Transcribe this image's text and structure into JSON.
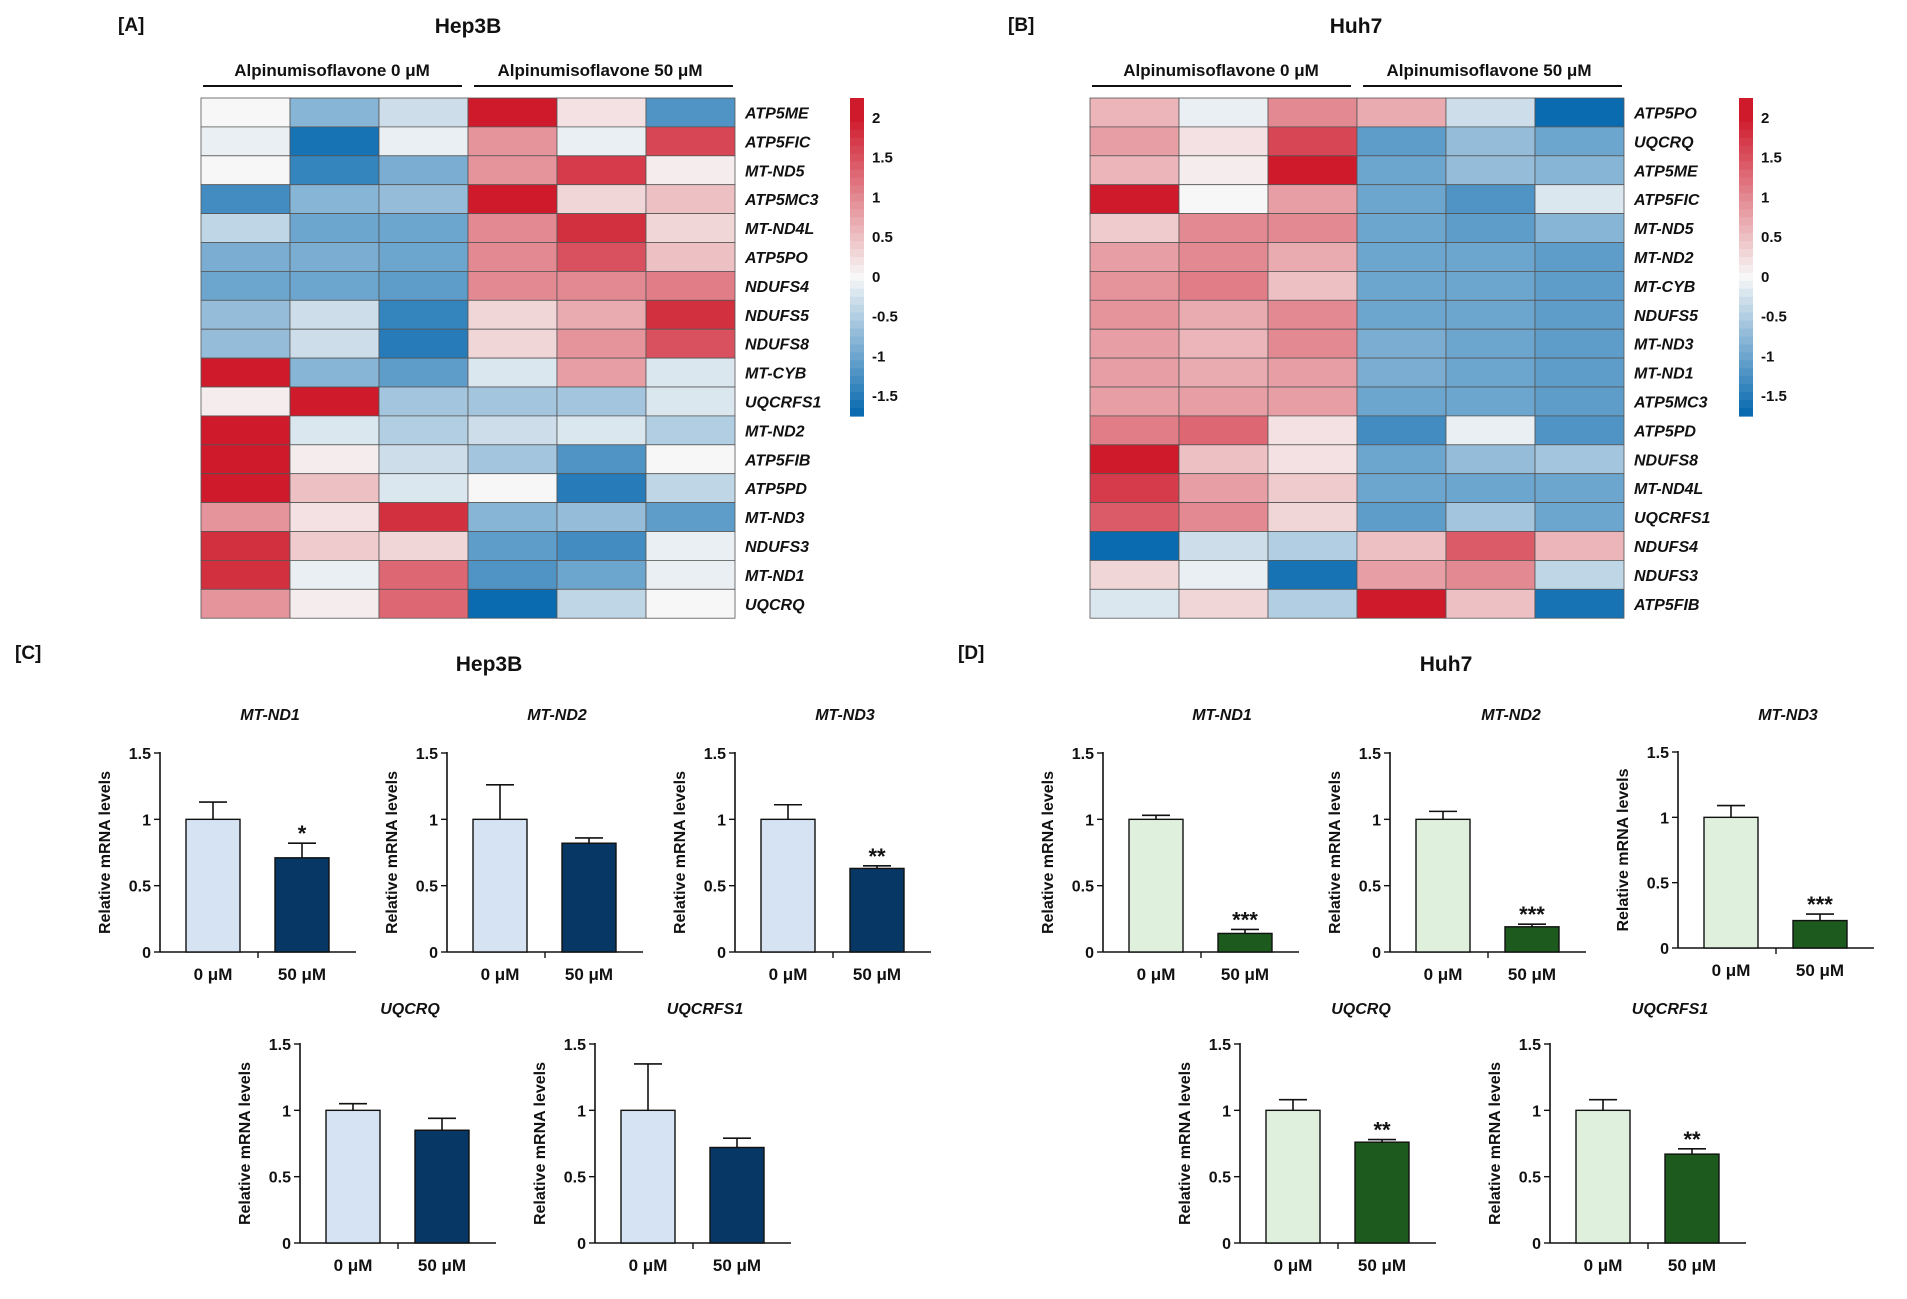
{
  "colors": {
    "hep_control": "#d6e3f2",
    "hep_treated": "#073764",
    "huh_control": "#dff0dc",
    "huh_treated": "#1d5a1e",
    "heat_low": "#0a6bb0",
    "heat_mid": "#f7f7f7",
    "heat_high": "#cf1a2b"
  },
  "chart_data": [
    {
      "type": "heatmap",
      "panel_label": "[A]",
      "title": "Hep3B",
      "groups": [
        "Alpinumisoflavone 0 μM",
        "Alpinumisoflavone 50 μM"
      ],
      "rows": [
        "ATP5ME",
        "ATP5FIC",
        "MT-ND5",
        "ATP5MC3",
        "MT-ND4L",
        "ATP5PO",
        "NDUFS4",
        "NDUFS5",
        "NDUFS8",
        "MT-CYB",
        "UQCRFS1",
        "MT-ND2",
        "ATP5FIB",
        "ATP5PD",
        "MT-ND3",
        "NDUFS3",
        "MT-ND1",
        "UQCRQ"
      ],
      "values": [
        [
          0.0,
          -0.8,
          -0.3,
          2.0,
          0.2,
          -1.2
        ],
        [
          -0.1,
          -1.6,
          -0.1,
          0.9,
          -0.1,
          1.6
        ],
        [
          0.0,
          -1.4,
          -0.9,
          0.9,
          1.7,
          0.1
        ],
        [
          -1.3,
          -0.8,
          -0.7,
          2.0,
          0.3,
          0.5
        ],
        [
          -0.4,
          -1.0,
          -1.0,
          1.0,
          1.8,
          0.3
        ],
        [
          -0.9,
          -0.9,
          -1.0,
          1.0,
          1.5,
          0.5
        ],
        [
          -1.0,
          -1.0,
          -1.1,
          1.0,
          1.0,
          1.1
        ],
        [
          -0.7,
          -0.3,
          -1.4,
          0.3,
          0.7,
          1.8
        ],
        [
          -0.7,
          -0.3,
          -1.5,
          0.3,
          0.9,
          1.5
        ],
        [
          2.0,
          -0.8,
          -1.1,
          -0.2,
          0.8,
          -0.2
        ],
        [
          0.1,
          2.0,
          -0.6,
          -0.6,
          -0.6,
          -0.2
        ],
        [
          2.0,
          -0.2,
          -0.5,
          -0.3,
          -0.2,
          -0.5
        ],
        [
          2.0,
          0.1,
          -0.3,
          -0.6,
          -1.2,
          0.0
        ],
        [
          2.0,
          0.5,
          -0.2,
          0.0,
          -1.5,
          -0.4
        ],
        [
          0.9,
          0.2,
          1.8,
          -0.8,
          -0.7,
          -1.1
        ],
        [
          1.8,
          0.4,
          0.3,
          -1.1,
          -1.3,
          -0.1
        ],
        [
          1.8,
          -0.1,
          1.3,
          -1.2,
          -1.0,
          -0.1
        ],
        [
          0.9,
          0.1,
          1.3,
          -1.7,
          -0.4,
          0.0
        ]
      ],
      "colorbar": {
        "min": -1.75,
        "max": 2.25,
        "ticks": [
          2,
          1.5,
          1,
          0.5,
          0,
          -0.5,
          -1,
          -1.5
        ]
      }
    },
    {
      "type": "heatmap",
      "panel_label": "[B]",
      "title": "Huh7",
      "groups": [
        "Alpinumisoflavone 0 μM",
        "Alpinumisoflavone 50 μM"
      ],
      "rows": [
        "ATP5PO",
        "UQCRQ",
        "ATP5ME",
        "ATP5FIC",
        "MT-ND5",
        "MT-ND2",
        "MT-CYB",
        "NDUFS5",
        "MT-ND3",
        "MT-ND1",
        "ATP5MC3",
        "ATP5PD",
        "NDUFS8",
        "MT-ND4L",
        "UQCRFS1",
        "NDUFS4",
        "NDUFS3",
        "ATP5FIB"
      ],
      "values": [
        [
          0.6,
          -0.1,
          1.0,
          0.7,
          -0.3,
          -1.7
        ],
        [
          0.8,
          0.2,
          1.6,
          -1.1,
          -0.7,
          -1.0
        ],
        [
          0.6,
          0.1,
          2.0,
          -1.0,
          -0.7,
          -0.8
        ],
        [
          2.0,
          0.0,
          0.8,
          -1.0,
          -1.2,
          -0.2
        ],
        [
          0.4,
          1.0,
          1.0,
          -1.0,
          -1.1,
          -0.8
        ],
        [
          0.8,
          1.0,
          0.7,
          -1.0,
          -1.0,
          -1.1
        ],
        [
          0.9,
          1.1,
          0.5,
          -1.0,
          -1.0,
          -1.1
        ],
        [
          0.9,
          0.7,
          1.0,
          -1.0,
          -1.0,
          -1.1
        ],
        [
          0.8,
          0.6,
          1.0,
          -0.9,
          -1.0,
          -1.1
        ],
        [
          0.8,
          0.7,
          0.8,
          -0.9,
          -1.0,
          -1.1
        ],
        [
          0.8,
          0.8,
          0.8,
          -1.0,
          -1.0,
          -1.1
        ],
        [
          1.1,
          1.3,
          0.2,
          -1.3,
          -0.1,
          -1.2
        ],
        [
          2.0,
          0.5,
          0.2,
          -1.0,
          -0.7,
          -0.6
        ],
        [
          1.7,
          0.8,
          0.4,
          -1.0,
          -1.0,
          -1.0
        ],
        [
          1.4,
          1.0,
          0.3,
          -1.1,
          -0.6,
          -1.0
        ],
        [
          -1.7,
          -0.3,
          -0.5,
          0.5,
          1.4,
          0.6
        ],
        [
          0.3,
          -0.1,
          -1.6,
          0.8,
          1.0,
          -0.4
        ],
        [
          -0.2,
          0.3,
          -0.5,
          2.0,
          0.5,
          -1.6
        ]
      ],
      "colorbar": {
        "min": -1.75,
        "max": 2.25,
        "ticks": [
          2,
          1.5,
          1,
          0.5,
          0,
          -0.5,
          -1,
          -1.5
        ]
      }
    },
    {
      "type": "bar",
      "panel_label": "[C]",
      "title": "Hep3B",
      "ylabel": "Relative mRNA levels",
      "categories": [
        "0 μM",
        "50 μM"
      ],
      "yticks": [
        "0",
        "0.5",
        "1",
        "1.5"
      ],
      "ylim": [
        0,
        1.5
      ],
      "charts": [
        {
          "gene": "MT-ND1",
          "values": [
            1.0,
            0.71
          ],
          "errors": [
            0.13,
            0.11
          ],
          "significance": [
            "",
            "*"
          ]
        },
        {
          "gene": "MT-ND2",
          "values": [
            1.0,
            0.82
          ],
          "errors": [
            0.26,
            0.04
          ],
          "significance": [
            "",
            ""
          ]
        },
        {
          "gene": "MT-ND3",
          "values": [
            1.0,
            0.63
          ],
          "errors": [
            0.11,
            0.02
          ],
          "significance": [
            "",
            "**"
          ]
        },
        {
          "gene": "UQCRQ",
          "values": [
            1.0,
            0.85
          ],
          "errors": [
            0.05,
            0.09
          ],
          "significance": [
            "",
            ""
          ]
        },
        {
          "gene": "UQCRFS1",
          "values": [
            1.0,
            0.72
          ],
          "errors": [
            0.35,
            0.07
          ],
          "significance": [
            "",
            ""
          ]
        }
      ]
    },
    {
      "type": "bar",
      "panel_label": "[D]",
      "title": "Huh7",
      "ylabel": "Relative mRNA levels",
      "categories": [
        "0 μM",
        "50 μM"
      ],
      "yticks": [
        "0",
        "0.5",
        "1",
        "1.5"
      ],
      "ylim": [
        0,
        1.5
      ],
      "charts": [
        {
          "gene": "MT-ND1",
          "values": [
            1.0,
            0.14
          ],
          "errors": [
            0.03,
            0.03
          ],
          "significance": [
            "",
            "***"
          ]
        },
        {
          "gene": "MT-ND2",
          "values": [
            1.0,
            0.19
          ],
          "errors": [
            0.06,
            0.02
          ],
          "significance": [
            "",
            "***"
          ]
        },
        {
          "gene": "MT-ND3",
          "values": [
            1.0,
            0.21
          ],
          "errors": [
            0.09,
            0.05
          ],
          "significance": [
            "",
            "***"
          ]
        },
        {
          "gene": "UQCRQ",
          "values": [
            1.0,
            0.76
          ],
          "errors": [
            0.08,
            0.02
          ],
          "significance": [
            "",
            "**"
          ]
        },
        {
          "gene": "UQCRFS1",
          "values": [
            1.0,
            0.67
          ],
          "errors": [
            0.08,
            0.04
          ],
          "significance": [
            "",
            "**"
          ]
        }
      ]
    }
  ]
}
